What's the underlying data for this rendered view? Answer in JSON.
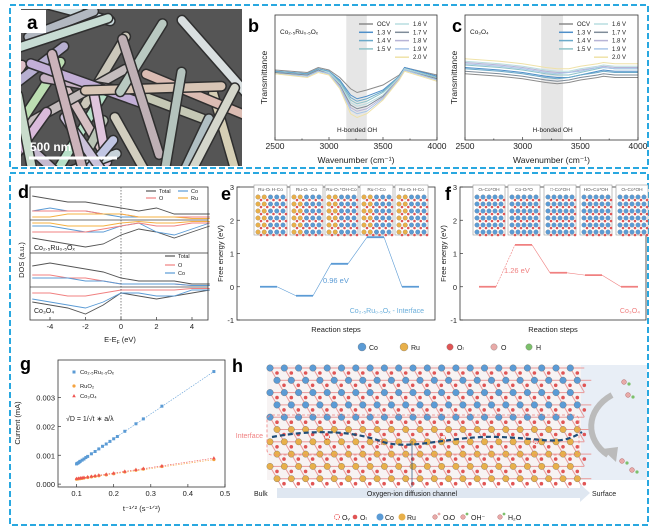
{
  "panel_labels": {
    "a": "a",
    "b": "b",
    "c": "c",
    "d": "d",
    "e": "e",
    "f": "f",
    "g": "g",
    "h": "h"
  },
  "panel_a": {
    "scale_bar": "500 nm"
  },
  "colors": {
    "frame": "#29a8e0",
    "Co": "#5b9bd5",
    "Ru": "#e8b04a",
    "O_L": "#e05555",
    "O": "#e8aaa8",
    "H": "#7cc06b",
    "interface": "#f08080",
    "channel": "#1f4e79"
  },
  "chart_data": [
    {
      "panel": "b",
      "type": "line",
      "title": "Co₂.₅Ru₀.₅Oₓ",
      "xlabel": "Wavenumber (cm⁻¹)",
      "ylabel": "Transmittance",
      "xlim": [
        2500,
        4000
      ],
      "xticks": [
        2500,
        3000,
        3500,
        4000
      ],
      "ylim": [
        0,
        1
      ],
      "grid": false,
      "legend": "top-right",
      "annotation": "H-bonded OH",
      "shaded_band": [
        3160,
        3350
      ],
      "x": [
        2500,
        2800,
        2900,
        3000,
        3100,
        3200,
        3260,
        3350,
        3500,
        3650,
        3700,
        4000
      ],
      "series": [
        {
          "name": "OCV",
          "color": "#8c8c8c",
          "values": [
            0.56,
            0.54,
            0.58,
            0.56,
            0.5,
            0.41,
            0.38,
            0.4,
            0.44,
            0.52,
            0.58,
            0.52
          ]
        },
        {
          "name": "1.3 V",
          "color": "#4f8fc9",
          "values": [
            0.55,
            0.53,
            0.57,
            0.55,
            0.48,
            0.36,
            0.33,
            0.35,
            0.4,
            0.51,
            0.58,
            0.51
          ]
        },
        {
          "name": "1.4 V",
          "color": "#6aa9c9",
          "values": [
            0.55,
            0.53,
            0.57,
            0.55,
            0.47,
            0.34,
            0.31,
            0.33,
            0.39,
            0.51,
            0.57,
            0.5
          ]
        },
        {
          "name": "1.5 V",
          "color": "#8ec3c9",
          "values": [
            0.54,
            0.52,
            0.56,
            0.54,
            0.46,
            0.32,
            0.29,
            0.31,
            0.38,
            0.5,
            0.57,
            0.5
          ]
        },
        {
          "name": "1.6 V",
          "color": "#b9dde0",
          "values": [
            0.54,
            0.52,
            0.56,
            0.54,
            0.45,
            0.3,
            0.27,
            0.29,
            0.36,
            0.5,
            0.57,
            0.49
          ]
        },
        {
          "name": "1.7 V",
          "color": "#7f8c99",
          "values": [
            0.54,
            0.52,
            0.56,
            0.53,
            0.44,
            0.28,
            0.25,
            0.27,
            0.35,
            0.49,
            0.56,
            0.49
          ]
        },
        {
          "name": "1.8 V",
          "color": "#b7b4d6",
          "values": [
            0.53,
            0.51,
            0.55,
            0.53,
            0.43,
            0.26,
            0.23,
            0.25,
            0.34,
            0.49,
            0.56,
            0.48
          ]
        },
        {
          "name": "1.9 V",
          "color": "#a9c6e8",
          "values": [
            0.53,
            0.51,
            0.55,
            0.53,
            0.42,
            0.24,
            0.21,
            0.23,
            0.33,
            0.48,
            0.56,
            0.48
          ]
        },
        {
          "name": "2.0 V",
          "color": "#efe2a8",
          "values": [
            0.53,
            0.5,
            0.54,
            0.52,
            0.41,
            0.21,
            0.18,
            0.21,
            0.32,
            0.48,
            0.55,
            0.47
          ]
        }
      ]
    },
    {
      "panel": "c",
      "type": "line",
      "title": "Co₃O₄",
      "xlabel": "Wavenumber (cm⁻¹)",
      "ylabel": "Transmittance",
      "xlim": [
        2500,
        4000
      ],
      "xticks": [
        2500,
        3000,
        3500,
        4000
      ],
      "ylim": [
        0,
        1
      ],
      "grid": false,
      "legend": "top-right",
      "annotation": "H-bonded OH",
      "shaded_band": [
        3160,
        3350
      ],
      "x": [
        2500,
        2800,
        3000,
        3200,
        3300,
        3400,
        3500,
        3650,
        3700,
        3800,
        4000
      ],
      "series": [
        {
          "name": "OCV",
          "color": "#8c8c8c",
          "values": [
            0.53,
            0.51,
            0.49,
            0.46,
            0.45,
            0.46,
            0.48,
            0.5,
            0.51,
            0.5,
            0.5
          ]
        },
        {
          "name": "1.3 V",
          "color": "#4f8fc9",
          "values": [
            0.58,
            0.56,
            0.54,
            0.51,
            0.5,
            0.5,
            0.52,
            0.55,
            0.56,
            0.55,
            0.55
          ]
        },
        {
          "name": "1.4 V",
          "color": "#6aa9c9",
          "values": [
            0.57,
            0.55,
            0.53,
            0.5,
            0.49,
            0.5,
            0.52,
            0.54,
            0.55,
            0.54,
            0.54
          ]
        },
        {
          "name": "1.5 V",
          "color": "#8ec3c9",
          "values": [
            0.6,
            0.58,
            0.56,
            0.53,
            0.52,
            0.52,
            0.54,
            0.57,
            0.58,
            0.57,
            0.57
          ]
        },
        {
          "name": "1.6 V",
          "color": "#b9dde0",
          "values": [
            0.63,
            0.61,
            0.59,
            0.56,
            0.55,
            0.55,
            0.57,
            0.59,
            0.6,
            0.59,
            0.59
          ]
        },
        {
          "name": "1.7 V",
          "color": "#7f8c99",
          "values": [
            0.55,
            0.53,
            0.51,
            0.48,
            0.47,
            0.48,
            0.5,
            0.52,
            0.53,
            0.52,
            0.52
          ]
        },
        {
          "name": "1.8 V",
          "color": "#b7b4d6",
          "values": [
            0.62,
            0.6,
            0.58,
            0.55,
            0.54,
            0.54,
            0.56,
            0.58,
            0.59,
            0.58,
            0.58
          ]
        },
        {
          "name": "1.9 V",
          "color": "#a9c6e8",
          "values": [
            0.61,
            0.59,
            0.57,
            0.54,
            0.53,
            0.54,
            0.55,
            0.58,
            0.58,
            0.57,
            0.57
          ]
        },
        {
          "name": "2.0 V",
          "color": "#efe2a8",
          "values": [
            0.65,
            0.63,
            0.61,
            0.58,
            0.57,
            0.57,
            0.59,
            0.61,
            0.62,
            0.61,
            0.61
          ]
        }
      ]
    },
    {
      "panel": "d",
      "type": "line",
      "ylabel": "DOS (a.u.)",
      "xlabel_main": "E-E",
      "xlabel_sub": "F",
      "xlabel_unit": " (eV)",
      "xlim": [
        -5,
        5
      ],
      "xticks": [
        -4,
        -2,
        0,
        2,
        4
      ],
      "fermi_line": 0,
      "x": [
        -5,
        -4,
        -3,
        -2,
        -1,
        0,
        1,
        2,
        3,
        4,
        5
      ],
      "subplots": [
        {
          "label": "Co₂.₅Ru₀.₅Oₓ",
          "ylim": [
            -11,
            11
          ],
          "series": [
            {
              "name": "Total",
              "color": "#555555",
              "up": [
                8,
                7,
                6,
                6,
                5,
                4,
                3,
                4,
                2,
                2,
                2
              ],
              "down": [
                -6,
                -7,
                -8,
                -9,
                -8,
                -5,
                -3,
                -4,
                -6,
                -4,
                -2
              ]
            },
            {
              "name": "Co",
              "color": "#5b9bd5",
              "up": [
                3,
                4,
                3,
                3,
                2,
                1,
                1,
                1,
                1,
                1,
                1
              ],
              "down": [
                -2,
                -2,
                -3,
                -4,
                -4,
                -2,
                -1,
                -4,
                -5,
                -3,
                -1
              ]
            },
            {
              "name": "O",
              "color": "#f08080",
              "up": [
                3,
                3,
                3,
                3,
                2,
                2,
                1,
                1,
                1,
                1,
                1
              ],
              "down": [
                -4,
                -4,
                -4,
                -4,
                -3,
                -2,
                -1,
                -2,
                -2,
                -1,
                -1
              ]
            },
            {
              "name": "Ru",
              "color": "#f5b041",
              "up": [
                1,
                1,
                2,
                2,
                2,
                2,
                1,
                1,
                1,
                0.5,
                0.5
              ],
              "down": [
                -1,
                -1,
                -2,
                -2,
                -2,
                -1,
                -0.5,
                -1,
                -1,
                -0.5,
                -0.5
              ]
            }
          ]
        },
        {
          "label": "Co₃O₄",
          "ylim": [
            -11,
            11
          ],
          "series": [
            {
              "name": "Total",
              "color": "#555555",
              "up": [
                7,
                8,
                7,
                6,
                5,
                3,
                2,
                2,
                2,
                1,
                1
              ],
              "down": [
                -5,
                -6,
                -7,
                -9,
                -6,
                -2,
                -3,
                -4,
                -3,
                -2,
                -1
              ]
            },
            {
              "name": "O",
              "color": "#f08080",
              "up": [
                4,
                4,
                3,
                3,
                2,
                1,
                1,
                1,
                1,
                0.5,
                0.5
              ],
              "down": [
                -2,
                -2,
                -3,
                -3,
                -2,
                -1,
                -1,
                -1,
                -1,
                -0.5,
                -0.5
              ]
            },
            {
              "name": "Co",
              "color": "#5b9bd5",
              "up": [
                3,
                3,
                3,
                2,
                2,
                1,
                1,
                1,
                1,
                0.5,
                0.5
              ],
              "down": [
                -4,
                -5,
                -6,
                -7,
                -5,
                -2,
                -2,
                -3,
                -3,
                -1,
                -1
              ]
            }
          ]
        }
      ]
    },
    {
      "panel": "e",
      "type": "line",
      "subtype": "free-energy-steps",
      "ylabel": "Free energy (eV)",
      "xlabel": "Reaction steps",
      "ylim": [
        -1,
        3
      ],
      "yticks": [
        -1,
        0,
        1,
        2,
        3
      ],
      "color": "#5b9bd5",
      "steps": [
        "Ru-Oₗ H-Co",
        "Ru-Oₗ -Co",
        "Ru-Oₗ *OH-Co",
        "Ru-□-Co",
        "Ru-Oₗ H-Co"
      ],
      "values": [
        0,
        -0.27,
        0.69,
        1.49,
        0
      ],
      "annotation": "0.96 eV",
      "series_label": "Co₂.₅Ru₀.₅Oₓ - Interface"
    },
    {
      "panel": "f",
      "type": "line",
      "subtype": "free-energy-steps",
      "ylabel": "Free energy (eV)",
      "xlabel": "Reaction steps",
      "ylim": [
        -1,
        3
      ],
      "yticks": [
        -1,
        0,
        1,
        2,
        3
      ],
      "color": "#f08080",
      "steps": [
        "Oₗ-Co*OH",
        "Co-Oₗ*O",
        "□-Co*OH",
        "HOₗ-Co*OH",
        "Oₗ-Co*OH"
      ],
      "values": [
        0,
        1.26,
        0.42,
        0.35,
        0
      ],
      "annotation": "1.26 eV",
      "series_label": "Co₃O₄"
    },
    {
      "panel": "g",
      "type": "scatter",
      "ylabel": "Current (mA)",
      "xlabel": "t⁻¹ᐟ² (s⁻¹ᐟ²)",
      "xlim": [
        0.05,
        0.5
      ],
      "xticks": [
        0.1,
        0.2,
        0.3,
        0.4,
        0.5
      ],
      "ylim": [
        -0.0001,
        0.0043
      ],
      "yticks": [
        0.0,
        0.001,
        0.002,
        0.003
      ],
      "ytick_labels": [
        "0.000",
        "0.001",
        "0.002",
        "0.003"
      ],
      "legend": "top-left",
      "equation": "√D = 1/√t ∗ a/λ",
      "series": [
        {
          "name": "Co₂.₅Ru₀.₅Oₓ",
          "color": "#5b9bd5",
          "marker": "square",
          "x": [
            0.1,
            0.102,
            0.105,
            0.108,
            0.11,
            0.115,
            0.12,
            0.125,
            0.13,
            0.14,
            0.15,
            0.16,
            0.17,
            0.18,
            0.19,
            0.2,
            0.21,
            0.23,
            0.26,
            0.28,
            0.33,
            0.47
          ],
          "y": [
            0.0007,
            0.00072,
            0.00074,
            0.00077,
            0.00079,
            0.00083,
            0.00087,
            0.00092,
            0.00096,
            0.00105,
            0.00113,
            0.00122,
            0.00131,
            0.00139,
            0.00148,
            0.00157,
            0.00165,
            0.00183,
            0.00209,
            0.00226,
            0.0027,
            0.0039
          ]
        },
        {
          "name": "RuO₂",
          "color": "#f5a340",
          "marker": "circle",
          "x": [
            0.1,
            0.105,
            0.11,
            0.115,
            0.12,
            0.13,
            0.14,
            0.15,
            0.16,
            0.18,
            0.2,
            0.23,
            0.26,
            0.28,
            0.33,
            0.47
          ],
          "y": [
            0.00017,
            0.00018,
            0.00019,
            0.0002,
            0.00021,
            0.00023,
            0.00025,
            0.00027,
            0.00029,
            0.00032,
            0.00036,
            0.00042,
            0.00048,
            0.00052,
            0.00061,
            0.00085
          ]
        },
        {
          "name": "Co₃O₄",
          "color": "#ef5350",
          "marker": "triangle",
          "x": [
            0.1,
            0.105,
            0.11,
            0.115,
            0.12,
            0.13,
            0.14,
            0.15,
            0.16,
            0.18,
            0.2,
            0.23,
            0.26,
            0.28,
            0.33,
            0.47
          ],
          "y": [
            0.00019,
            0.0002,
            0.00021,
            0.00022,
            0.00023,
            0.00025,
            0.00027,
            0.00029,
            0.00031,
            0.00034,
            0.00038,
            0.00044,
            0.0005,
            0.00054,
            0.00063,
            0.0009
          ]
        }
      ]
    }
  ],
  "panel_h": {
    "top_legend": [
      "Co",
      "Ru",
      "Oₗ",
      "O",
      "H"
    ],
    "interface_label": "Interface",
    "bulk_label": "Bulk",
    "channel_label": "Oxygen-ion diffusion channel",
    "surface_label": "Surface",
    "bottom_legend": [
      "Oᵥ",
      "Oₗ",
      "Co",
      "Ru",
      "OₗO",
      "OH⁻",
      "H₂O"
    ]
  }
}
